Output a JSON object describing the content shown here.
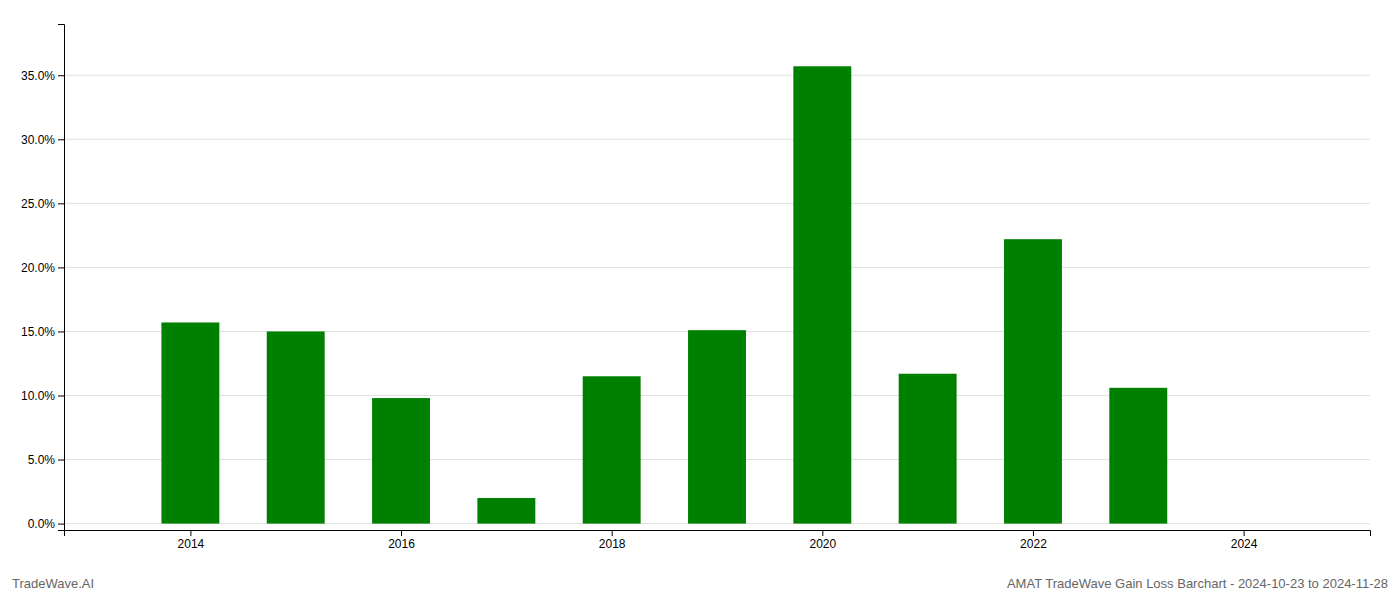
{
  "chart_data": {
    "type": "bar",
    "x": [
      2014,
      2015,
      2016,
      2017,
      2018,
      2019,
      2020,
      2021,
      2022,
      2023,
      2024
    ],
    "values": [
      0.157,
      0.15,
      0.098,
      0.02,
      0.115,
      0.151,
      0.357,
      0.117,
      0.222,
      0.106,
      0.0
    ],
    "color": "#008000",
    "xlim": [
      2012.8,
      2025.2
    ],
    "xticks": [
      2014,
      2016,
      2018,
      2020,
      2022,
      2024
    ],
    "ylim": [
      -0.005,
      0.39
    ],
    "yticks": [
      {
        "value": 0.0,
        "label": "0.0%"
      },
      {
        "value": 0.05,
        "label": "5.0%"
      },
      {
        "value": 0.1,
        "label": "10.0%"
      },
      {
        "value": 0.15,
        "label": "15.0%"
      },
      {
        "value": 0.2,
        "label": "20.0%"
      },
      {
        "value": 0.25,
        "label": "25.0%"
      },
      {
        "value": 0.3,
        "label": "30.0%"
      },
      {
        "value": 0.35,
        "label": "35.0%"
      }
    ],
    "grid": true,
    "annotations": [
      "TradeWave.AI",
      "AMAT TradeWave Gain Loss Barchart - 2024-10-23 to 2024-11-28"
    ]
  }
}
